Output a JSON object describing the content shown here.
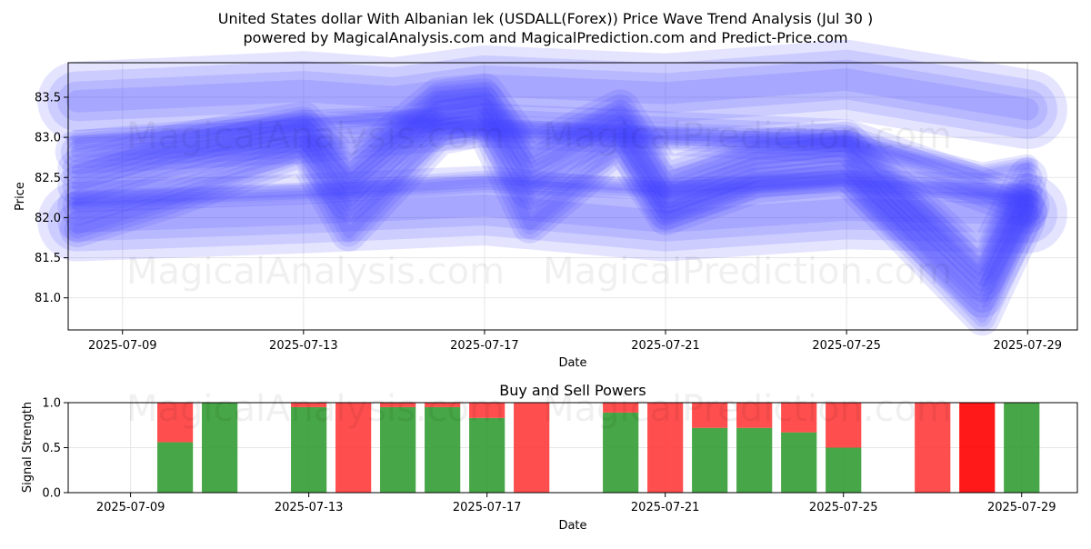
{
  "title_line1": "United States dollar With Albanian lek (USDALL(Forex)) Price Wave Trend Analysis (Jul 30 )",
  "title_line2": "powered by MagicalAnalysis.com and MagicalPrediction.com and Predict-Price.com",
  "watermarks": [
    "MagicalAnalysis.com",
    "MagicalPrediction.com"
  ],
  "colors": {
    "wave": "#4040ff",
    "buy": "#2e9a2e",
    "sell": "#ff3b3b",
    "strong_sell": "#ff0000",
    "grid": "#e6e6e6"
  },
  "chart_data": [
    {
      "type": "line",
      "subtype": "wave-bands",
      "xlabel": "Date",
      "ylabel": "Price",
      "x_ticks": [
        "2025-07-09",
        "2025-07-13",
        "2025-07-17",
        "2025-07-21",
        "2025-07-25",
        "2025-07-29"
      ],
      "y_ticks": [
        "81.0",
        "81.5",
        "82.0",
        "82.5",
        "83.0",
        "83.5"
      ],
      "xlim": [
        "2025-07-08",
        "2025-07-30"
      ],
      "ylim": [
        80.6,
        83.93
      ],
      "grid": true,
      "series": [
        {
          "x": [
            "2025-07-08",
            "2025-07-13",
            "2025-07-17",
            "2025-07-21",
            "2025-07-25",
            "2025-07-29"
          ],
          "y": [
            82.82,
            82.95,
            83.15,
            83.05,
            82.95,
            82.15
          ],
          "width": 1.0
        },
        {
          "x": [
            "2025-07-08",
            "2025-07-10",
            "2025-07-13",
            "2025-07-15",
            "2025-07-17",
            "2025-07-21",
            "2025-07-25",
            "2025-07-29"
          ],
          "y": [
            83.45,
            83.5,
            83.58,
            83.5,
            83.65,
            83.55,
            83.72,
            83.35
          ],
          "width": 1.8
        },
        {
          "x": [
            "2025-07-08",
            "2025-07-13",
            "2025-07-17",
            "2025-07-21",
            "2025-07-25",
            "2025-07-29"
          ],
          "y": [
            81.95,
            82.05,
            82.15,
            81.95,
            82.1,
            82.05
          ],
          "width": 1.8
        },
        {
          "x": [
            "2025-07-08",
            "2025-07-10",
            "2025-07-13",
            "2025-07-14",
            "2025-07-16",
            "2025-07-17",
            "2025-07-18",
            "2025-07-20",
            "2025-07-21",
            "2025-07-23",
            "2025-07-25",
            "2025-07-28",
            "2025-07-29"
          ],
          "y": [
            82.4,
            82.75,
            83.1,
            82.45,
            83.4,
            83.45,
            82.6,
            83.2,
            82.3,
            82.7,
            82.85,
            81.2,
            82.3
          ],
          "width": 0.9
        },
        {
          "x": [
            "2025-07-08",
            "2025-07-10",
            "2025-07-13",
            "2025-07-14",
            "2025-07-16",
            "2025-07-17",
            "2025-07-18",
            "2025-07-20",
            "2025-07-21",
            "2025-07-23",
            "2025-07-25",
            "2025-07-28",
            "2025-07-29"
          ],
          "y": [
            82.15,
            82.5,
            82.95,
            82.2,
            83.2,
            83.3,
            82.35,
            83.0,
            82.1,
            82.5,
            82.6,
            81.0,
            82.1
          ],
          "width": 0.9
        },
        {
          "x": [
            "2025-07-08",
            "2025-07-10",
            "2025-07-13",
            "2025-07-14",
            "2025-07-16",
            "2025-07-17",
            "2025-07-18",
            "2025-07-20",
            "2025-07-21",
            "2025-07-23",
            "2025-07-25",
            "2025-07-28",
            "2025-07-29"
          ],
          "y": [
            82.6,
            82.9,
            83.2,
            82.6,
            83.5,
            83.55,
            82.8,
            83.35,
            82.5,
            82.85,
            82.95,
            81.4,
            82.5
          ],
          "width": 0.9
        },
        {
          "x": [
            "2025-07-08",
            "2025-07-10",
            "2025-07-13",
            "2025-07-14",
            "2025-07-16",
            "2025-07-17",
            "2025-07-18",
            "2025-07-20",
            "2025-07-21",
            "2025-07-23",
            "2025-07-25",
            "2025-07-28",
            "2025-07-29"
          ],
          "y": [
            81.85,
            82.2,
            82.8,
            81.8,
            83.0,
            83.1,
            81.9,
            82.85,
            82.0,
            82.4,
            82.5,
            80.75,
            81.95
          ],
          "width": 0.8
        },
        {
          "x": [
            "2025-07-08",
            "2025-07-13",
            "2025-07-17",
            "2025-07-21",
            "2025-07-25",
            "2025-07-29"
          ],
          "y": [
            82.2,
            82.3,
            82.45,
            82.35,
            82.45,
            82.25
          ],
          "width": 0.5
        },
        {
          "x": [
            "2025-07-08",
            "2025-07-10",
            "2025-07-13",
            "2025-07-15",
            "2025-07-17",
            "2025-07-21",
            "2025-07-25",
            "2025-07-28",
            "2025-07-29"
          ],
          "y": [
            82.95,
            83.05,
            83.2,
            83.25,
            83.1,
            83.0,
            82.95,
            82.55,
            82.65
          ],
          "width": 0.5
        }
      ]
    },
    {
      "type": "bar",
      "title": "Buy and Sell Powers",
      "xlabel": "Date",
      "ylabel": "Signal Strength",
      "x_ticks": [
        "2025-07-09",
        "2025-07-13",
        "2025-07-17",
        "2025-07-21",
        "2025-07-25",
        "2025-07-29"
      ],
      "y_ticks": [
        "0.0",
        "0.5",
        "1.0"
      ],
      "xlim": [
        "2025-07-08",
        "2025-07-30"
      ],
      "ylim": [
        0,
        1
      ],
      "grid": true,
      "bars": [
        {
          "x": "2025-07-10",
          "buy": 0.56,
          "sell": 0.44
        },
        {
          "x": "2025-07-11",
          "buy": 1.0,
          "sell": 0.0
        },
        {
          "x": "2025-07-13",
          "buy": 0.95,
          "sell": 0.05
        },
        {
          "x": "2025-07-14",
          "buy": 0.0,
          "sell": 1.0
        },
        {
          "x": "2025-07-15",
          "buy": 0.95,
          "sell": 0.05
        },
        {
          "x": "2025-07-16",
          "buy": 0.95,
          "sell": 0.05
        },
        {
          "x": "2025-07-17",
          "buy": 0.83,
          "sell": 0.17
        },
        {
          "x": "2025-07-18",
          "buy": 0.0,
          "sell": 1.0
        },
        {
          "x": "2025-07-20",
          "buy": 0.89,
          "sell": 0.11
        },
        {
          "x": "2025-07-21",
          "buy": 0.0,
          "sell": 1.0
        },
        {
          "x": "2025-07-22",
          "buy": 0.72,
          "sell": 0.28
        },
        {
          "x": "2025-07-23",
          "buy": 0.72,
          "sell": 0.28
        },
        {
          "x": "2025-07-24",
          "buy": 0.67,
          "sell": 0.33
        },
        {
          "x": "2025-07-25",
          "buy": 0.5,
          "sell": 0.5
        },
        {
          "x": "2025-07-27",
          "buy": 0.0,
          "sell": 1.0
        },
        {
          "x": "2025-07-28",
          "buy": 0.0,
          "sell": 1.0,
          "strong": true
        },
        {
          "x": "2025-07-29",
          "buy": 1.0,
          "sell": 0.0
        }
      ]
    }
  ]
}
